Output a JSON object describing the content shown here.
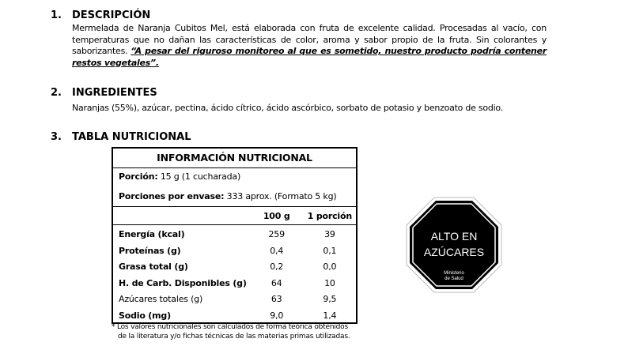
{
  "sections": [
    {
      "num": "1.",
      "title": "DESCRIPCIÓN",
      "text": "Mermelada de Naranja Cubitos Mel, está elaborada con fruta de excelente calidad. Procesadas al vacío, con temperaturas que no dañan las características de color, aroma y sabor propio de la fruta. Sin colorantes y saborizantes. ",
      "quote": "“A pesar del riguroso monitoreo al que es sometido, nuestro producto podría contener restos vegetales”."
    },
    {
      "num": "2.",
      "title": "INGREDIENTES",
      "text": "Naranjas (55%), azúcar, pectina, ácido cítrico, ácido ascórbico, sorbato de potasio y benzoato de sodio."
    },
    {
      "num": "3.",
      "title": "TABLA NUTRICIONAL"
    }
  ],
  "table": {
    "title": "INFORMACIÓN NUTRICIONAL",
    "portion_label": "Porción:",
    "portion_value": " 15 g (1 cucharada)",
    "portions_label": "Porciones por envase:",
    "portions_value": " 333 aprox. (Formato 5 kg)",
    "col1": "100 g",
    "col2": "1 porción",
    "rows": [
      {
        "label": "Energía (kcal)",
        "v100": "259",
        "vp": "39",
        "bold": true
      },
      {
        "label": "Proteínas (g)",
        "v100": "0,4",
        "vp": "0,1",
        "bold": true
      },
      {
        "label": "Grasa total (g)",
        "v100": "0,2",
        "vp": "0,0",
        "bold": true
      },
      {
        "label": "H. de Carb. Disponibles (g)",
        "v100": "64",
        "vp": "10",
        "bold": true
      },
      {
        "label": "Azúcares totales (g)",
        "v100": "63",
        "vp": "9,5",
        "bold": false
      },
      {
        "label": "Sodio (mg)",
        "v100": "9,0",
        "vp": "1,4",
        "bold": true
      }
    ],
    "footnote1": "* Los valores nutricionales son calculados de forma teórica obtenidos",
    "footnote2": "de la literatura y/o fichas técnicas de las materias primas utilizadas."
  },
  "seal": {
    "line1": "ALTO EN",
    "line2": "AZÚCARES",
    "line3": "Ministerio",
    "line4": "de Salud",
    "color": "#000000"
  }
}
